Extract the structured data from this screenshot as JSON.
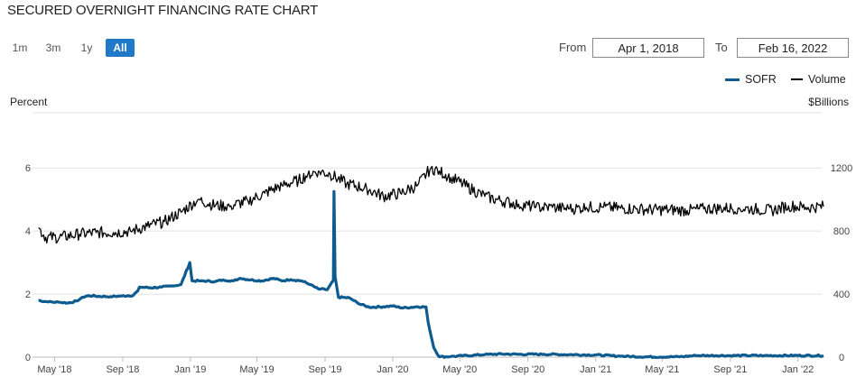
{
  "header": {
    "title": "SECURED OVERNIGHT FINANCING RATE CHART"
  },
  "range_buttons": [
    {
      "label": "1m",
      "active": false
    },
    {
      "label": "3m",
      "active": false
    },
    {
      "label": "1y",
      "active": false
    },
    {
      "label": "All",
      "active": true
    }
  ],
  "date_range": {
    "from_label": "From",
    "from_value": "Apr 1, 2018",
    "to_label": "To",
    "to_value": "Feb 16, 2022"
  },
  "legend": [
    {
      "name": "SOFR",
      "color": "#0e5b8f"
    },
    {
      "name": "Volume",
      "color": "#000000"
    }
  ],
  "chart_data": {
    "type": "line",
    "left_axis": {
      "label": "Percent",
      "ticks": [
        "0",
        "2",
        "4",
        "6"
      ],
      "range": [
        0,
        7.75
      ]
    },
    "right_axis": {
      "label": "$Billions",
      "ticks": [
        "0",
        "400",
        "800",
        "1200"
      ],
      "range": [
        0,
        1550
      ]
    },
    "x_ticks": [
      "May '18",
      "Sep '18",
      "Jan '19",
      "May '19",
      "Sep '19",
      "Jan '20",
      "May '20",
      "Sep '20",
      "Jan '21",
      "May '21",
      "Sep '21",
      "Jan '22"
    ],
    "x_tick_dates": [
      "2018-05-01",
      "2018-09-01",
      "2019-01-01",
      "2019-05-01",
      "2019-09-01",
      "2020-01-01",
      "2020-05-01",
      "2020-09-01",
      "2021-01-01",
      "2021-05-01",
      "2021-09-01",
      "2022-01-01"
    ],
    "x_range": [
      "2018-04-01",
      "2022-02-16"
    ],
    "grid": true,
    "series": [
      {
        "name": "SOFR",
        "axis": "left",
        "color": "#0e5b8f",
        "points": [
          [
            "2018-04-02",
            1.8
          ],
          [
            "2018-04-20",
            1.75
          ],
          [
            "2018-05-10",
            1.74
          ],
          [
            "2018-05-25",
            1.72
          ],
          [
            "2018-06-10",
            1.78
          ],
          [
            "2018-06-20",
            1.9
          ],
          [
            "2018-07-01",
            1.95
          ],
          [
            "2018-07-20",
            1.93
          ],
          [
            "2018-08-10",
            1.92
          ],
          [
            "2018-08-30",
            1.94
          ],
          [
            "2018-09-20",
            1.96
          ],
          [
            "2018-09-28",
            2.1
          ],
          [
            "2018-10-01",
            2.22
          ],
          [
            "2018-10-20",
            2.2
          ],
          [
            "2018-11-10",
            2.22
          ],
          [
            "2018-11-30",
            2.26
          ],
          [
            "2018-12-15",
            2.3
          ],
          [
            "2018-12-31",
            3.0
          ],
          [
            "2019-01-04",
            2.42
          ],
          [
            "2019-01-20",
            2.42
          ],
          [
            "2019-02-15",
            2.4
          ],
          [
            "2019-03-01",
            2.45
          ],
          [
            "2019-03-20",
            2.42
          ],
          [
            "2019-04-01",
            2.5
          ],
          [
            "2019-04-20",
            2.45
          ],
          [
            "2019-05-10",
            2.42
          ],
          [
            "2019-05-31",
            2.5
          ],
          [
            "2019-06-15",
            2.42
          ],
          [
            "2019-07-01",
            2.46
          ],
          [
            "2019-07-20",
            2.42
          ],
          [
            "2019-08-05",
            2.3
          ],
          [
            "2019-08-20",
            2.16
          ],
          [
            "2019-09-05",
            2.14
          ],
          [
            "2019-09-16",
            2.43
          ],
          [
            "2019-09-17",
            5.25
          ],
          [
            "2019-09-19",
            2.55
          ],
          [
            "2019-09-25",
            1.9
          ],
          [
            "2019-10-15",
            1.88
          ],
          [
            "2019-10-31",
            1.7
          ],
          [
            "2019-11-20",
            1.58
          ],
          [
            "2019-12-15",
            1.6
          ],
          [
            "2019-12-31",
            1.62
          ],
          [
            "2020-01-20",
            1.56
          ],
          [
            "2020-02-15",
            1.6
          ],
          [
            "2020-03-01",
            1.59
          ],
          [
            "2020-03-05",
            1.1
          ],
          [
            "2020-03-15",
            0.3
          ],
          [
            "2020-03-25",
            0.01
          ],
          [
            "2020-04-15",
            0.02
          ],
          [
            "2020-05-15",
            0.05
          ],
          [
            "2020-06-15",
            0.08
          ],
          [
            "2020-07-15",
            0.1
          ],
          [
            "2020-08-15",
            0.09
          ],
          [
            "2020-09-30",
            0.09
          ],
          [
            "2020-11-15",
            0.08
          ],
          [
            "2020-12-31",
            0.07
          ],
          [
            "2021-02-15",
            0.03
          ],
          [
            "2021-04-01",
            0.01
          ],
          [
            "2021-06-01",
            0.01
          ],
          [
            "2021-07-01",
            0.05
          ],
          [
            "2021-09-01",
            0.05
          ],
          [
            "2021-11-01",
            0.05
          ],
          [
            "2022-01-01",
            0.05
          ],
          [
            "2022-02-16",
            0.05
          ]
        ]
      },
      {
        "name": "Volume",
        "axis": "right",
        "color": "#000000",
        "points": [
          [
            "2018-04-02",
            820
          ],
          [
            "2018-04-15",
            760
          ],
          [
            "2018-05-10",
            760
          ],
          [
            "2018-06-15",
            780
          ],
          [
            "2018-07-15",
            790
          ],
          [
            "2018-08-15",
            790
          ],
          [
            "2018-09-15",
            800
          ],
          [
            "2018-10-15",
            830
          ],
          [
            "2018-11-15",
            860
          ],
          [
            "2018-12-15",
            920
          ],
          [
            "2019-01-15",
            1000
          ],
          [
            "2019-02-15",
            960
          ],
          [
            "2019-03-15",
            960
          ],
          [
            "2019-04-15",
            990
          ],
          [
            "2019-05-15",
            1040
          ],
          [
            "2019-06-15",
            1090
          ],
          [
            "2019-07-15",
            1120
          ],
          [
            "2019-08-01",
            1160
          ],
          [
            "2019-08-20",
            1180
          ],
          [
            "2019-09-10",
            1160
          ],
          [
            "2019-10-10",
            1100
          ],
          [
            "2019-11-15",
            1070
          ],
          [
            "2019-12-15",
            1020
          ],
          [
            "2020-01-15",
            1040
          ],
          [
            "2020-02-15",
            1090
          ],
          [
            "2020-03-10",
            1200
          ],
          [
            "2020-03-25",
            1180
          ],
          [
            "2020-04-15",
            1140
          ],
          [
            "2020-05-15",
            1080
          ],
          [
            "2020-06-15",
            1020
          ],
          [
            "2020-07-15",
            990
          ],
          [
            "2020-08-15",
            970
          ],
          [
            "2020-09-15",
            950
          ],
          [
            "2020-10-15",
            950
          ],
          [
            "2020-11-15",
            940
          ],
          [
            "2020-12-15",
            950
          ],
          [
            "2021-01-15",
            950
          ],
          [
            "2021-02-15",
            945
          ],
          [
            "2021-03-15",
            940
          ],
          [
            "2021-04-15",
            935
          ],
          [
            "2021-05-15",
            935
          ],
          [
            "2021-06-15",
            930
          ],
          [
            "2021-07-15",
            940
          ],
          [
            "2021-08-15",
            945
          ],
          [
            "2021-09-15",
            945
          ],
          [
            "2021-10-15",
            940
          ],
          [
            "2021-11-15",
            930
          ],
          [
            "2021-12-15",
            960
          ],
          [
            "2022-01-15",
            950
          ],
          [
            "2022-02-16",
            955
          ]
        ]
      }
    ]
  }
}
